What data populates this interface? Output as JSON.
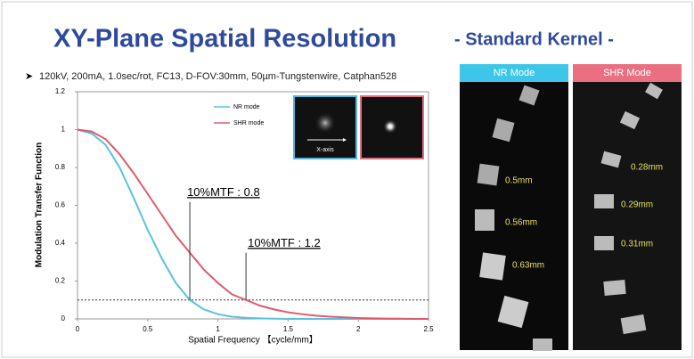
{
  "header": {
    "title": "XY-Plane Spatial Resolution",
    "subtitle": "- Standard Kernel -",
    "conditions": "120kV, 200mA, 1.0sec/rot, FC13, D-FOV:30mm, 50µm-Tungstenwire, Catphan528"
  },
  "chart_data": {
    "type": "line",
    "x_label": "Spatial Frequency 【cycle/mm】",
    "y_label": "Modulation Transfer Function",
    "x": [
      0,
      0.1,
      0.2,
      0.3,
      0.4,
      0.5,
      0.6,
      0.7,
      0.8,
      0.9,
      1,
      1.1,
      1.2,
      1.3,
      1.4,
      1.5,
      1.6,
      1.7,
      1.8,
      1.9,
      2,
      2.1,
      2.2,
      2.3,
      2.4,
      2.5
    ],
    "series": [
      {
        "name": "NR mode",
        "color": "#5bc0de",
        "values": [
          1,
          0.98,
          0.92,
          0.8,
          0.64,
          0.47,
          0.32,
          0.19,
          0.1,
          0.05,
          0.025,
          0.012,
          0.006,
          0.003,
          0.001,
          0,
          0,
          0,
          0,
          0,
          0,
          0,
          0,
          0,
          0,
          0
        ]
      },
      {
        "name": "SHR mode",
        "color": "#e05a6a",
        "values": [
          1,
          0.99,
          0.95,
          0.87,
          0.77,
          0.66,
          0.55,
          0.44,
          0.35,
          0.26,
          0.19,
          0.13,
          0.1,
          0.07,
          0.05,
          0.035,
          0.025,
          0.017,
          0.012,
          0.008,
          0.005,
          0.003,
          0.002,
          0.001,
          0,
          0
        ]
      }
    ],
    "xlim": [
      0,
      2.5
    ],
    "xticks": [
      0,
      0.5,
      1,
      1.5,
      2,
      2.5
    ],
    "ylim": [
      0,
      1.2
    ],
    "yticks": [
      0,
      0.2,
      0.4,
      0.6,
      0.8,
      1,
      1.2
    ],
    "reference_line": 0.1,
    "annotations": [
      {
        "text": "10%MTF : 0.8",
        "x": 0.8,
        "y": 0.1
      },
      {
        "text": "10%MTF : 1.2",
        "x": 1.2,
        "y": 0.1
      }
    ],
    "inset_label": "X-axis"
  },
  "images": [
    {
      "title": "NR Mode",
      "labels": [
        "0.5mm",
        "0.56mm",
        "0.63mm"
      ]
    },
    {
      "title": "SHR Mode",
      "labels": [
        "0.28mm",
        "0.29mm",
        "0.31mm"
      ]
    }
  ]
}
